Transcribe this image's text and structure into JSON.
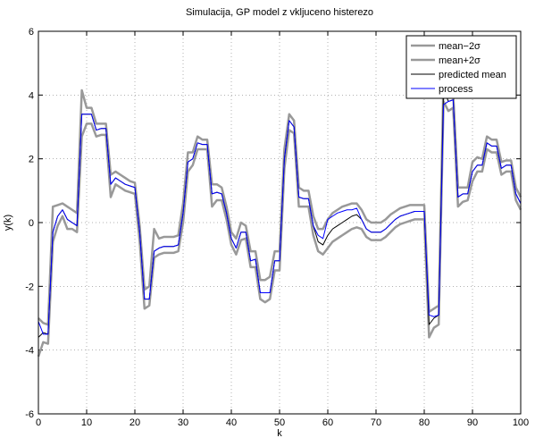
{
  "chart_data": {
    "type": "line",
    "title": "Simulacija, GP model z vkljuceno histerezo",
    "xlabel": "k",
    "ylabel": "y(k)",
    "xlim": [
      0,
      100
    ],
    "xticks": [
      0,
      10,
      20,
      30,
      40,
      50,
      60,
      70,
      80,
      90,
      100
    ],
    "ylim": [
      -6,
      6
    ],
    "yticks": [
      -6,
      -4,
      -2,
      0,
      2,
      4,
      6
    ],
    "grid": true,
    "legend": "top-right",
    "x": [
      0,
      1,
      2,
      3,
      4,
      5,
      6,
      7,
      8,
      9,
      10,
      11,
      12,
      13,
      14,
      15,
      16,
      17,
      18,
      19,
      20,
      21,
      22,
      23,
      24,
      25,
      26,
      27,
      28,
      29,
      30,
      31,
      32,
      33,
      34,
      35,
      36,
      37,
      38,
      39,
      40,
      41,
      42,
      43,
      44,
      45,
      46,
      47,
      48,
      49,
      50,
      51,
      52,
      53,
      54,
      55,
      56,
      57,
      58,
      59,
      60,
      61,
      62,
      63,
      64,
      65,
      66,
      67,
      68,
      69,
      70,
      71,
      72,
      73,
      74,
      75,
      76,
      77,
      78,
      79,
      80,
      81,
      82,
      83,
      84,
      85,
      86,
      87,
      88,
      89,
      90,
      91,
      92,
      93,
      94,
      95,
      96,
      97,
      98,
      99,
      100
    ],
    "series": [
      {
        "name": "mean−2σ",
        "color": "#999999",
        "width": 2.5,
        "values": [
          -4.2,
          -3.75,
          -3.8,
          -0.6,
          -0.1,
          0.2,
          -0.2,
          -0.2,
          -0.3,
          2.7,
          3.1,
          3.1,
          2.7,
          2.75,
          2.75,
          0.8,
          1.2,
          1.1,
          1.0,
          0.95,
          0.9,
          -0.6,
          -2.7,
          -2.6,
          -1.1,
          -1.0,
          -0.95,
          -0.95,
          -0.95,
          -0.9,
          0.0,
          1.6,
          1.8,
          2.3,
          2.3,
          2.3,
          0.5,
          0.7,
          0.7,
          0.1,
          -0.7,
          -1.0,
          -0.55,
          -0.5,
          -1.4,
          -1.4,
          -2.4,
          -2.5,
          -2.4,
          -1.5,
          -1.5,
          1.7,
          2.9,
          2.8,
          0.5,
          0.5,
          0.5,
          -0.4,
          -0.9,
          -1.0,
          -0.8,
          -0.6,
          -0.5,
          -0.4,
          -0.3,
          -0.2,
          -0.15,
          -0.2,
          -0.45,
          -0.55,
          -0.55,
          -0.55,
          -0.45,
          -0.3,
          -0.15,
          -0.05,
          0.0,
          0.05,
          0.1,
          0.1,
          0.1,
          -3.6,
          -3.3,
          -3.2,
          3.8,
          3.5,
          3.6,
          0.5,
          0.65,
          0.7,
          1.3,
          1.6,
          1.6,
          2.3,
          2.2,
          2.2,
          1.5,
          1.6,
          1.6,
          0.7,
          0.4
        ]
      },
      {
        "name": "mean+2σ",
        "color": "#999999",
        "width": 2.5,
        "values": [
          -3.0,
          -3.15,
          -3.2,
          0.5,
          0.55,
          0.6,
          0.5,
          0.4,
          0.3,
          4.15,
          3.6,
          3.6,
          3.1,
          3.1,
          3.1,
          1.5,
          1.6,
          1.5,
          1.4,
          1.3,
          1.25,
          -0.1,
          -2.1,
          -2.0,
          -0.2,
          -0.5,
          -0.45,
          -0.45,
          -0.45,
          -0.4,
          0.6,
          2.2,
          2.2,
          2.7,
          2.6,
          2.6,
          1.2,
          1.2,
          1.1,
          0.5,
          -0.3,
          -0.5,
          0.0,
          -0.1,
          -0.9,
          -0.9,
          -1.8,
          -1.8,
          -1.7,
          -0.9,
          -0.9,
          2.3,
          3.4,
          3.2,
          1.1,
          1.0,
          1.0,
          0.2,
          -0.2,
          -0.2,
          0.1,
          0.3,
          0.4,
          0.5,
          0.55,
          0.6,
          0.6,
          0.4,
          0.1,
          0.0,
          0.0,
          0.0,
          0.1,
          0.25,
          0.35,
          0.45,
          0.5,
          0.55,
          0.55,
          0.55,
          0.55,
          -2.8,
          -2.7,
          -2.6,
          4.5,
          4.0,
          4.05,
          1.1,
          1.1,
          1.1,
          1.9,
          2.05,
          2.0,
          2.7,
          2.6,
          2.6,
          1.9,
          1.95,
          1.95,
          1.1,
          0.8
        ]
      },
      {
        "name": "predicted mean",
        "color": "#000000",
        "width": 1,
        "values": [
          -3.6,
          -3.45,
          -3.5,
          -0.3,
          0.2,
          0.4,
          0.1,
          0.0,
          -0.1,
          3.4,
          3.4,
          3.4,
          2.9,
          2.95,
          2.95,
          1.2,
          1.4,
          1.3,
          1.2,
          1.15,
          1.1,
          -0.3,
          -2.4,
          -2.4,
          -0.9,
          -0.8,
          -0.75,
          -0.75,
          -0.75,
          -0.7,
          0.3,
          1.9,
          2.0,
          2.5,
          2.45,
          2.45,
          0.9,
          0.95,
          0.9,
          0.3,
          -0.5,
          -0.8,
          -0.3,
          -0.3,
          -1.2,
          -1.15,
          -2.2,
          -2.2,
          -2.2,
          -1.2,
          -1.2,
          2.0,
          3.2,
          3.0,
          0.8,
          0.75,
          0.75,
          -0.1,
          -0.6,
          -0.7,
          -0.4,
          -0.2,
          -0.1,
          0.0,
          0.1,
          0.2,
          0.25,
          0.1,
          -0.2,
          -0.3,
          -0.3,
          -0.3,
          -0.2,
          -0.05,
          0.1,
          0.2,
          0.25,
          0.3,
          0.35,
          0.35,
          0.35,
          -3.2,
          -3.0,
          -2.9,
          4.2,
          3.8,
          3.85,
          0.8,
          0.9,
          0.9,
          1.6,
          1.8,
          1.8,
          2.5,
          2.4,
          2.4,
          1.7,
          1.8,
          1.8,
          0.9,
          0.6
        ]
      },
      {
        "name": "process",
        "color": "#0000ff",
        "width": 1,
        "values": [
          -3.1,
          -3.5,
          -3.5,
          -0.3,
          0.2,
          0.4,
          0.1,
          0.0,
          -0.1,
          3.4,
          3.4,
          3.4,
          2.9,
          2.95,
          2.95,
          1.2,
          1.4,
          1.3,
          1.2,
          1.15,
          1.1,
          -0.3,
          -2.4,
          -2.4,
          -0.9,
          -0.8,
          -0.75,
          -0.75,
          -0.75,
          -0.7,
          0.3,
          1.9,
          2.0,
          2.5,
          2.45,
          2.45,
          0.9,
          0.95,
          0.9,
          0.3,
          -0.5,
          -0.8,
          -0.3,
          -0.3,
          -1.2,
          -1.15,
          -2.2,
          -2.2,
          -2.2,
          -1.2,
          -1.2,
          2.0,
          3.2,
          3.0,
          0.8,
          0.75,
          0.75,
          -0.1,
          -0.4,
          -0.5,
          0.1,
          0.2,
          0.3,
          0.35,
          0.4,
          0.4,
          0.45,
          0.1,
          -0.2,
          -0.3,
          -0.3,
          -0.3,
          -0.2,
          -0.05,
          0.1,
          0.2,
          0.25,
          0.3,
          0.35,
          0.35,
          0.35,
          -2.9,
          -2.95,
          -2.9,
          3.7,
          3.8,
          3.85,
          0.8,
          0.9,
          0.9,
          1.6,
          1.8,
          1.8,
          2.5,
          2.4,
          2.4,
          1.7,
          1.8,
          1.8,
          0.9,
          0.6
        ]
      }
    ]
  }
}
